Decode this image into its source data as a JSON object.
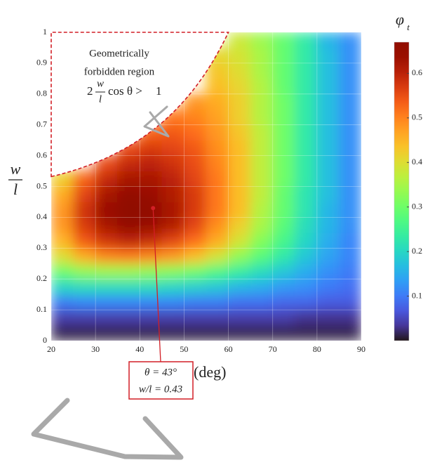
{
  "chart_data": {
    "type": "heatmap",
    "colormap": "turbo",
    "x": [
      22.5,
      27.5,
      32.5,
      37.5,
      42.5,
      47.5,
      52.5,
      57.5,
      62.5,
      67.5,
      72.5,
      77.5,
      82.5,
      87.5
    ],
    "y": [
      0.025,
      0.075,
      0.125,
      0.175,
      0.225,
      0.275,
      0.325,
      0.375,
      0.425,
      0.475,
      0.525,
      0.575,
      0.625,
      0.675,
      0.725,
      0.775,
      0.825,
      0.875,
      0.925,
      0.975
    ],
    "values": [
      [
        0.01,
        0.01,
        0.01,
        0.01,
        0.01,
        0.01,
        0.01,
        0.01,
        0.01,
        0.01,
        0.01,
        0.01,
        0.01,
        0.01
      ],
      [
        0.04,
        0.04,
        0.04,
        0.04,
        0.04,
        0.04,
        0.04,
        0.04,
        0.04,
        0.04,
        0.04,
        0.03,
        0.03,
        0.03
      ],
      [
        0.1,
        0.11,
        0.11,
        0.11,
        0.11,
        0.11,
        0.1,
        0.1,
        0.09,
        0.09,
        0.08,
        0.08,
        0.07,
        0.07
      ],
      [
        0.2,
        0.21,
        0.21,
        0.21,
        0.21,
        0.2,
        0.19,
        0.18,
        0.16,
        0.15,
        0.13,
        0.12,
        0.1,
        0.09
      ],
      [
        0.3,
        0.33,
        0.34,
        0.34,
        0.33,
        0.32,
        0.3,
        0.27,
        0.24,
        0.21,
        0.18,
        0.15,
        0.12,
        0.1
      ],
      [
        0.4,
        0.46,
        0.5,
        0.51,
        0.5,
        0.48,
        0.44,
        0.39,
        0.33,
        0.28,
        0.23,
        0.18,
        0.14,
        0.11
      ],
      [
        0.45,
        0.54,
        0.58,
        0.6,
        0.59,
        0.56,
        0.52,
        0.46,
        0.39,
        0.32,
        0.26,
        0.2,
        0.15,
        0.11
      ],
      [
        0.48,
        0.57,
        0.62,
        0.65,
        0.64,
        0.61,
        0.56,
        0.49,
        0.42,
        0.35,
        0.28,
        0.21,
        0.16,
        0.12
      ],
      [
        0.48,
        0.58,
        0.64,
        0.67,
        0.66,
        0.62,
        0.57,
        0.51,
        0.44,
        0.36,
        0.29,
        0.22,
        0.16,
        0.12
      ],
      [
        0.46,
        0.56,
        0.62,
        0.65,
        0.64,
        0.61,
        0.57,
        0.51,
        0.44,
        0.37,
        0.29,
        0.22,
        0.17,
        0.12
      ],
      [
        0.42,
        0.53,
        0.59,
        0.62,
        0.62,
        0.6,
        0.56,
        0.51,
        0.44,
        0.37,
        0.3,
        0.23,
        0.17,
        0.12
      ],
      [
        null,
        null,
        0.55,
        0.59,
        0.6,
        0.58,
        0.55,
        0.5,
        0.44,
        0.37,
        0.3,
        0.23,
        0.17,
        0.12
      ],
      [
        null,
        null,
        null,
        0.55,
        0.57,
        0.56,
        0.54,
        0.49,
        0.44,
        0.37,
        0.3,
        0.23,
        0.17,
        0.12
      ],
      [
        null,
        null,
        null,
        null,
        0.53,
        0.54,
        0.52,
        0.48,
        0.43,
        0.37,
        0.3,
        0.23,
        0.17,
        0.12
      ],
      [
        null,
        null,
        null,
        null,
        null,
        0.51,
        0.5,
        0.47,
        0.42,
        0.36,
        0.3,
        0.23,
        0.17,
        0.12
      ],
      [
        null,
        null,
        null,
        null,
        null,
        null,
        0.48,
        0.46,
        0.42,
        0.36,
        0.3,
        0.23,
        0.17,
        0.12
      ],
      [
        null,
        null,
        null,
        null,
        null,
        null,
        null,
        0.44,
        0.41,
        0.36,
        0.29,
        0.23,
        0.17,
        0.12
      ],
      [
        null,
        null,
        null,
        null,
        null,
        null,
        null,
        0.43,
        0.4,
        0.35,
        0.29,
        0.23,
        0.17,
        0.12
      ],
      [
        null,
        null,
        null,
        null,
        null,
        null,
        null,
        0.41,
        0.39,
        0.35,
        0.29,
        0.23,
        0.17,
        0.12
      ],
      [
        null,
        null,
        null,
        null,
        null,
        null,
        null,
        null,
        0.38,
        0.34,
        0.29,
        0.23,
        0.16,
        0.12
      ]
    ],
    "xlim": [
      20,
      90
    ],
    "xticks": [
      20,
      30,
      40,
      50,
      60,
      70,
      80,
      90
    ],
    "ylim": [
      0,
      1
    ],
    "yticks": [
      0,
      0.1,
      0.2,
      0.3,
      0.4,
      0.5,
      0.6,
      0.7,
      0.8,
      0.9,
      1
    ],
    "clim": [
      0,
      0.67
    ],
    "cticks": [
      0.1,
      0.2,
      0.3,
      0.4,
      0.5,
      0.6
    ],
    "grid": true,
    "xlabel": "θ(deg)",
    "ylabel": {
      "num": "w",
      "den": "l"
    },
    "colorbar_label": {
      "symbol": "φ",
      "sub": "t"
    },
    "region": {
      "lines": [
        "Geometrically",
        "forbidden region"
      ]
    },
    "formula": {
      "coef": 2,
      "num": "w",
      "den": "l",
      "mid": "cos θ >",
      "rhs": 1
    },
    "optimum": {
      "x": 43,
      "y": 0.43,
      "lines": [
        "θ = 43°",
        "w/l = 0.43"
      ]
    }
  }
}
